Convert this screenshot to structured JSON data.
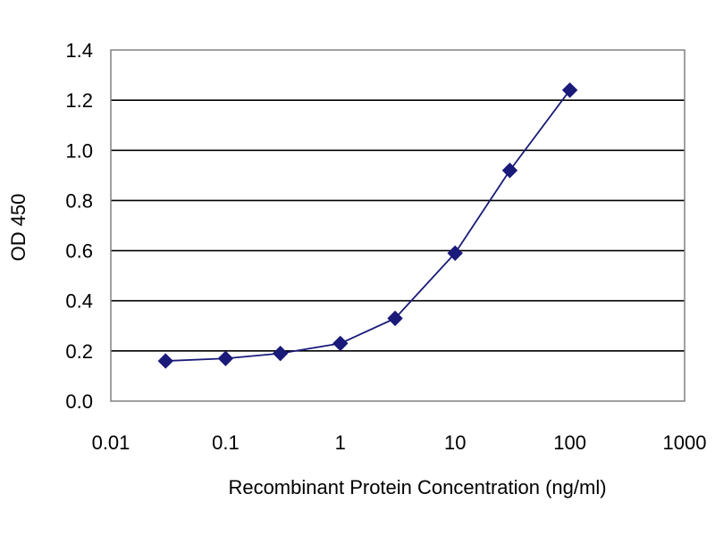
{
  "chart_data": {
    "type": "line",
    "title": "",
    "xlabel": "Recombinant Protein Concentration (ng/ml)",
    "ylabel": "OD 450",
    "x_scale": "log",
    "xlim": [
      0.01,
      1000
    ],
    "ylim": [
      0,
      1.4
    ],
    "x_ticks": [
      "0.01",
      "0.1",
      "1",
      "10",
      "100",
      "1000"
    ],
    "y_ticks": [
      "0.0",
      "0.2",
      "0.4",
      "0.6",
      "0.8",
      "1.0",
      "1.2",
      "1.4"
    ],
    "grid": "horizontal",
    "series": [
      {
        "color": "#1a1a7a",
        "marker": "diamond",
        "x": [
          0.03,
          0.1,
          0.3,
          1,
          3,
          10,
          30,
          100
        ],
        "y": [
          0.16,
          0.17,
          0.19,
          0.23,
          0.33,
          0.59,
          0.92,
          1.24
        ]
      }
    ]
  }
}
